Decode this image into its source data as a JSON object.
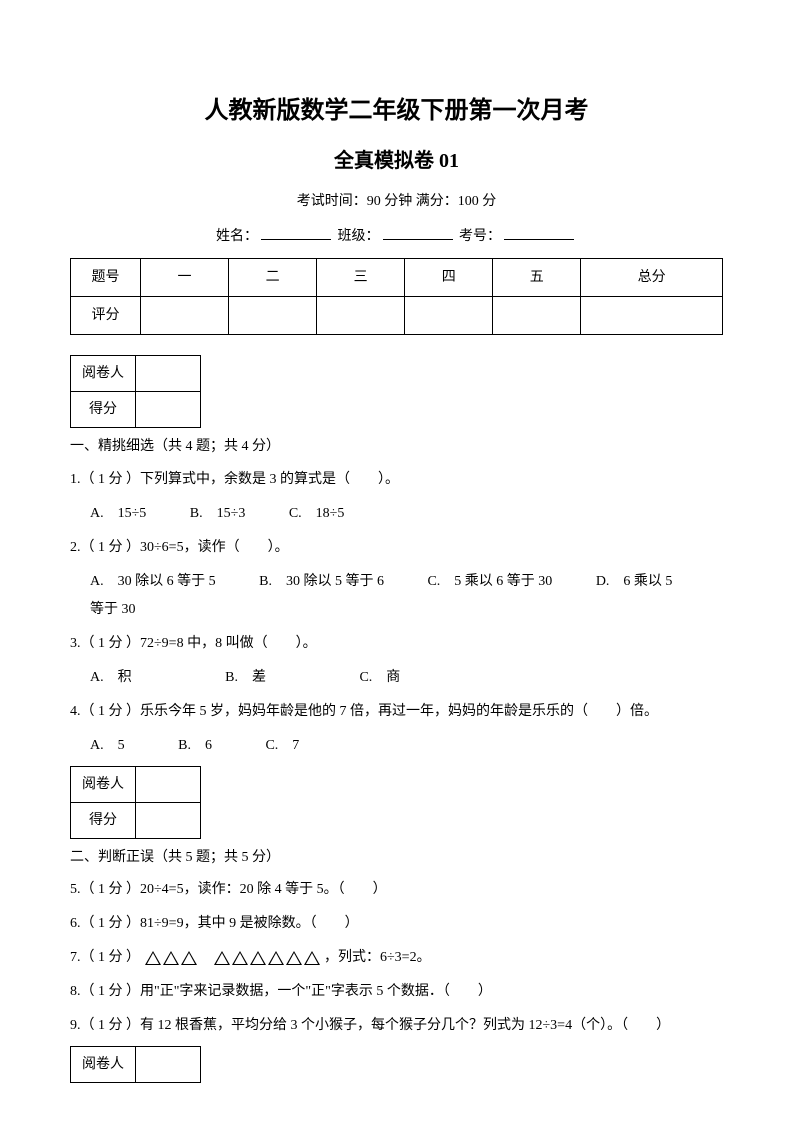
{
  "header": {
    "title1": "人教新版数学二年级下册第一次月考",
    "title2": "全真模拟卷 01",
    "meta": "考试时间：90 分钟  满分：100 分",
    "name_label": "姓名：",
    "class_label": "班级：",
    "id_label": "考号："
  },
  "score_table": {
    "row1": [
      "题号",
      "一",
      "二",
      "三",
      "四",
      "五",
      "总分"
    ],
    "row2_label": "评分"
  },
  "mini": {
    "reviewer": "阅卷人",
    "score": "得分"
  },
  "section1": {
    "head": "一、精挑细选（共 4 题；共 4 分）",
    "q1": "1.（ 1 分 ）下列算式中，余数是 3 的算式是（　　）。",
    "q1_opts": [
      "A.　15÷5",
      "B.　15÷3",
      "C.　18÷5"
    ],
    "q2": "2.（ 1 分 ）30÷6=5，读作（　　）。",
    "q2_opts": [
      "A.　30 除以 6 等于 5",
      "B.　30 除以 5 等于 6",
      "C.　5 乘以 6 等于 30",
      "D.　6 乘以 5"
    ],
    "q2_cont": "等于 30",
    "q3": "3.（ 1 分 ）72÷9=8 中，8 叫做（　　）。",
    "q3_opts": [
      "A.　积",
      "B.　差",
      "C.　商"
    ],
    "q4": "4.（ 1 分 ）乐乐今年 5 岁，妈妈年龄是他的 7 倍，再过一年，妈妈的年龄是乐乐的（　　）倍。",
    "q4_opts": [
      "A.　5",
      "B.　6",
      "C.　7"
    ]
  },
  "section2": {
    "head": "二、判断正误（共 5 题；共 5 分）",
    "q5": "5.（ 1 分 ）20÷4=5，读作：20 除 4 等于 5。（　　）",
    "q6": "6.（ 1 分 ）81÷9=9，其中 9 是被除数。（　　）",
    "q7_pre": "7.（ 1 分 ）",
    "q7_post": "，列式：6÷3=2。",
    "q8": "8.（ 1 分 ）用\"正\"字来记录数据，一个\"正\"字表示 5 个数据．（　　）",
    "q9": "9.（ 1 分 ）有 12 根香蕉，平均分给 3 个小猴子，每个猴子分几个？列式为 12÷3=4（个）。（　　）"
  }
}
